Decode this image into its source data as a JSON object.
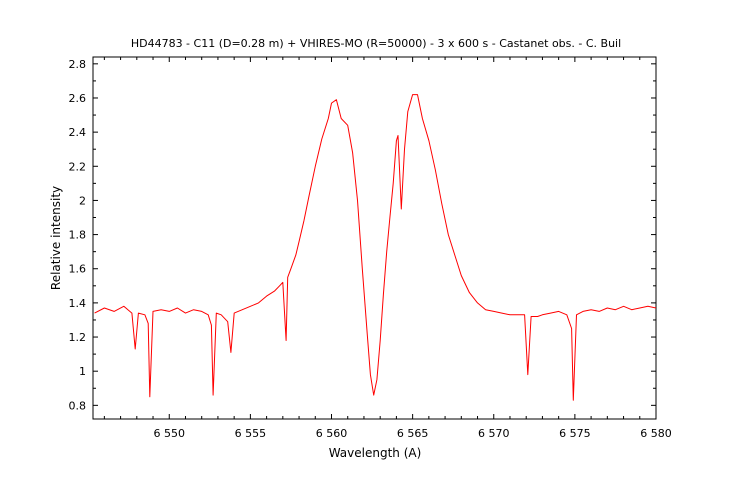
{
  "chart_data": {
    "type": "line",
    "title": "HD44783 - C11 (D=0.28 m) + VHIRES-MO (R=50000) - 3 x 600 s - Castanet obs. - C. Buil",
    "xlabel": "Wavelength (A)",
    "ylabel": "Relative intensity",
    "xlim": [
      6545.3,
      6580
    ],
    "ylim": [
      0.72,
      2.84
    ],
    "x_ticks": [
      6550,
      6555,
      6560,
      6565,
      6570,
      6575,
      6580
    ],
    "x_tick_labels": [
      "6 550",
      "6 555",
      "6 560",
      "6 565",
      "6 570",
      "6 575",
      "6 580"
    ],
    "y_ticks": [
      0.8,
      1,
      1.2,
      1.4,
      1.6,
      1.8,
      2,
      2.2,
      2.4,
      2.6,
      2.8
    ],
    "y_tick_labels": [
      "0.8",
      "1",
      "1.2",
      "1.4",
      "1.6",
      "1.8",
      "2",
      "2.2",
      "2.4",
      "2.6",
      "2.8"
    ],
    "grid": false,
    "line_color": "#ff0000",
    "series": [
      {
        "x": [
          6545.4,
          6546.0,
          6546.6,
          6547.2,
          6547.7,
          6547.9,
          6548.1,
          6548.5,
          6548.7,
          6548.8,
          6549.0,
          6549.5,
          6550.0,
          6550.5,
          6551.0,
          6551.5,
          6552.0,
          6552.4,
          6552.6,
          6552.7,
          6552.9,
          6553.2,
          6553.6,
          6553.8,
          6554.0,
          6554.5,
          6555.0,
          6555.5,
          6556.0,
          6556.5,
          6556.8,
          6557.0,
          6557.2,
          6557.3,
          6557.5,
          6557.8,
          6558.0,
          6558.3,
          6558.6,
          6559.0,
          6559.4,
          6559.8,
          6560.0,
          6560.3,
          6560.6,
          6561.0,
          6561.3,
          6561.6,
          6561.9,
          6562.2,
          6562.4,
          6562.6,
          6562.8,
          6563.0,
          6563.2,
          6563.4,
          6563.6,
          6563.8,
          6564.0,
          6564.1,
          6564.3,
          6564.5,
          6564.7,
          6565.0,
          6565.3,
          6565.6,
          6566.0,
          6566.4,
          6566.8,
          6567.2,
          6567.6,
          6568.0,
          6568.5,
          6569.0,
          6569.5,
          6570.0,
          6570.5,
          6571.0,
          6571.5,
          6571.9,
          6572.1,
          6572.3,
          6572.7,
          6573.0,
          6573.5,
          6574.0,
          6574.5,
          6574.8,
          6574.9,
          6575.1,
          6575.5,
          6576.0,
          6576.5,
          6577.0,
          6577.5,
          6578.0,
          6578.5,
          6579.0,
          6579.5,
          6580.0
        ],
        "y": [
          1.34,
          1.37,
          1.35,
          1.38,
          1.34,
          1.13,
          1.34,
          1.33,
          1.28,
          0.85,
          1.35,
          1.36,
          1.35,
          1.37,
          1.34,
          1.36,
          1.35,
          1.33,
          1.27,
          0.86,
          1.34,
          1.33,
          1.29,
          1.11,
          1.34,
          1.36,
          1.38,
          1.4,
          1.44,
          1.47,
          1.5,
          1.52,
          1.18,
          1.55,
          1.6,
          1.68,
          1.76,
          1.88,
          2.02,
          2.2,
          2.36,
          2.48,
          2.57,
          2.59,
          2.48,
          2.44,
          2.28,
          2.0,
          1.6,
          1.22,
          0.98,
          0.86,
          0.95,
          1.18,
          1.45,
          1.7,
          1.9,
          2.1,
          2.35,
          2.38,
          1.95,
          2.3,
          2.52,
          2.62,
          2.62,
          2.48,
          2.35,
          2.18,
          1.98,
          1.8,
          1.68,
          1.56,
          1.46,
          1.4,
          1.36,
          1.35,
          1.34,
          1.33,
          1.33,
          1.33,
          0.98,
          1.32,
          1.32,
          1.33,
          1.34,
          1.35,
          1.33,
          1.25,
          0.83,
          1.33,
          1.35,
          1.36,
          1.35,
          1.37,
          1.36,
          1.38,
          1.36,
          1.37,
          1.38,
          1.37
        ]
      }
    ]
  }
}
